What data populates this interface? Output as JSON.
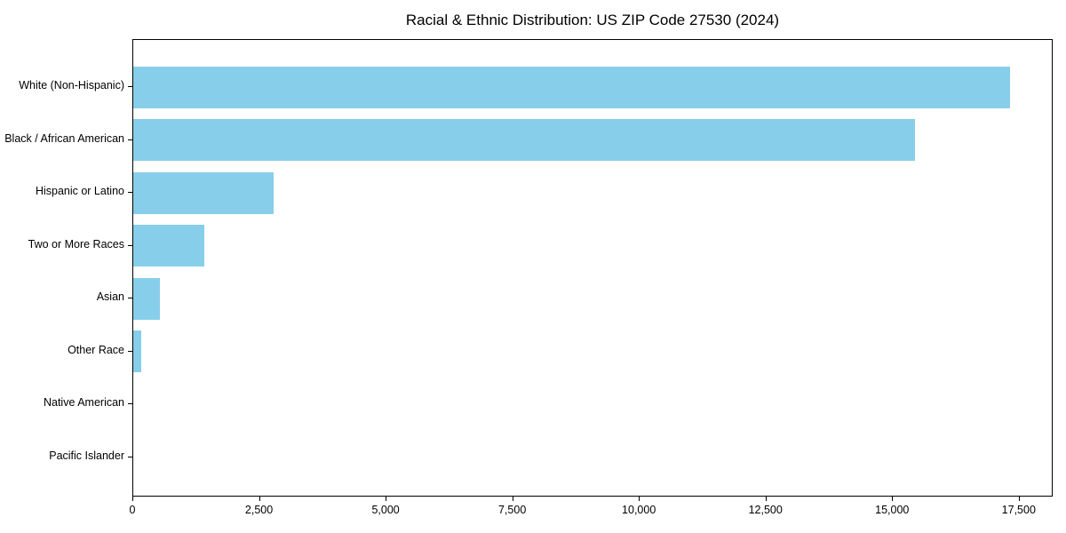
{
  "chart_data": {
    "type": "bar",
    "orientation": "horizontal",
    "title": "Racial & Ethnic Distribution: US ZIP Code 27530 (2024)",
    "xlabel": "",
    "ylabel": "",
    "categories": [
      "White (Non-Hispanic)",
      "Black / African American",
      "Hispanic or Latino",
      "Two or More Races",
      "Asian",
      "Other Race",
      "Native American",
      "Pacific Islander"
    ],
    "values": [
      17310,
      15440,
      2770,
      1410,
      530,
      150,
      0,
      0
    ],
    "xlim": [
      0,
      18170
    ],
    "x_ticks": [
      {
        "value": 0,
        "label": "0"
      },
      {
        "value": 2500,
        "label": "2,500"
      },
      {
        "value": 5000,
        "label": "5,000"
      },
      {
        "value": 7500,
        "label": "7,500"
      },
      {
        "value": 10000,
        "label": "10,000"
      },
      {
        "value": 12500,
        "label": "12,500"
      },
      {
        "value": 15000,
        "label": "15,000"
      },
      {
        "value": 17500,
        "label": "17,500"
      }
    ],
    "bar_color": "#87CEEB",
    "axis_color": "#000000",
    "background_color": "#ffffff",
    "grid": false,
    "legend": null
  }
}
